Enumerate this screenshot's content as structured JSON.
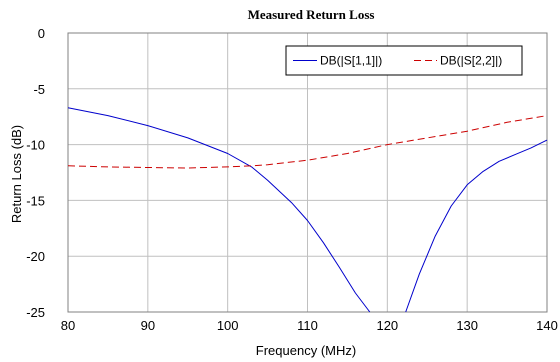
{
  "chart_data": {
    "type": "line",
    "title": "Measured Return Loss",
    "xlabel": "Frequency (MHz)",
    "ylabel": "Return Loss (dB)",
    "xlim": [
      80,
      140
    ],
    "ylim": [
      -25,
      0
    ],
    "x_ticks": [
      "80",
      "90",
      "100",
      "110",
      "120",
      "130",
      "140"
    ],
    "y_ticks": [
      "0",
      "-5",
      "-10",
      "-15",
      "-20",
      "-25"
    ],
    "grid": true,
    "legend_position": "top-right",
    "series": [
      {
        "name": "DB(|S[1,1]|)",
        "color": "#0000cc",
        "style": "solid",
        "points": [
          [
            80,
            -6.7
          ],
          [
            85,
            -7.4
          ],
          [
            90,
            -8.3
          ],
          [
            95,
            -9.4
          ],
          [
            100,
            -10.8
          ],
          [
            103,
            -12.0
          ],
          [
            105,
            -13.2
          ],
          [
            108,
            -15.2
          ],
          [
            110,
            -16.8
          ],
          [
            112,
            -18.8
          ],
          [
            114,
            -21.0
          ],
          [
            116,
            -23.3
          ],
          [
            117.8,
            -25.0
          ]
        ]
      },
      {
        "name": "DB(|S[1,1]|)",
        "color": "#0000cc",
        "style": "solid",
        "points": [
          [
            122.3,
            -25.0
          ],
          [
            124,
            -21.6
          ],
          [
            126,
            -18.2
          ],
          [
            128,
            -15.5
          ],
          [
            130,
            -13.6
          ],
          [
            132,
            -12.4
          ],
          [
            134,
            -11.5
          ],
          [
            136,
            -10.9
          ],
          [
            138,
            -10.3
          ],
          [
            140,
            -9.6
          ]
        ]
      },
      {
        "name": "DB(|S[2,2]|)",
        "color": "#cc0000",
        "style": "dashed",
        "points": [
          [
            80,
            -11.9
          ],
          [
            85,
            -12.0
          ],
          [
            90,
            -12.05
          ],
          [
            95,
            -12.1
          ],
          [
            100,
            -12.0
          ],
          [
            103,
            -11.9
          ],
          [
            105,
            -11.8
          ],
          [
            110,
            -11.4
          ],
          [
            115,
            -10.8
          ],
          [
            120,
            -10.0
          ],
          [
            125,
            -9.4
          ],
          [
            130,
            -8.8
          ],
          [
            135,
            -8.0
          ],
          [
            140,
            -7.4
          ]
        ]
      }
    ],
    "legend": [
      {
        "label": "DB(|S[1,1]|)",
        "color": "#0000cc",
        "style": "solid"
      },
      {
        "label": "DB(|S[2,2]|)",
        "color": "#cc0000",
        "style": "dashed"
      }
    ]
  }
}
